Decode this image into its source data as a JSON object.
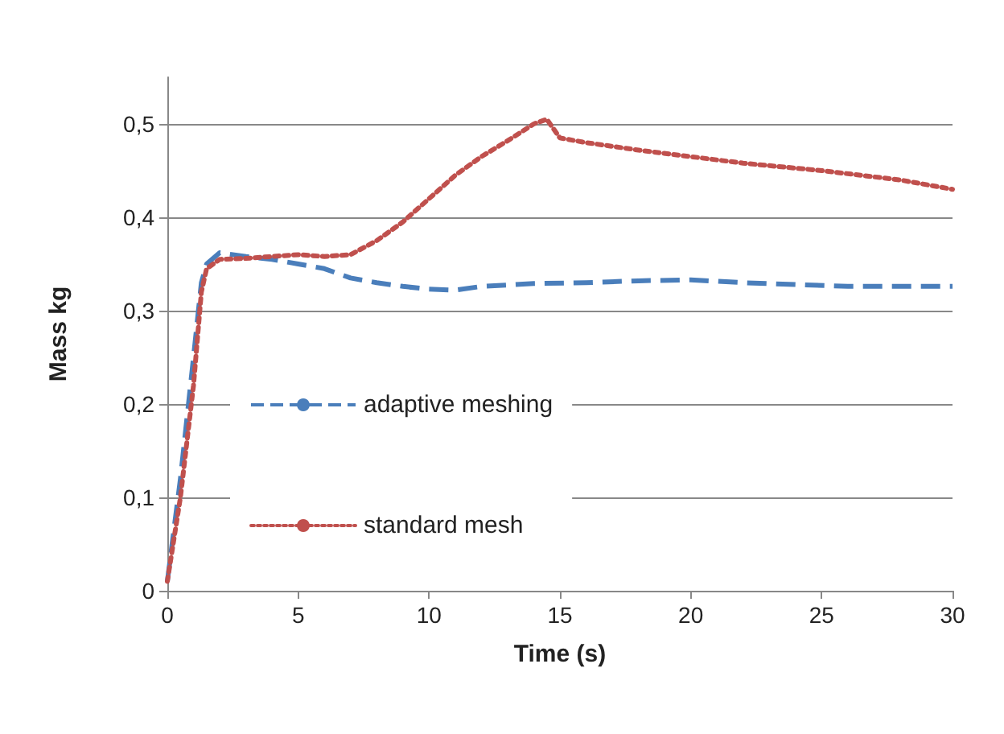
{
  "chart_data": {
    "type": "line",
    "xlabel": "Time (s)",
    "ylabel": "Mass kg",
    "xlim": [
      0,
      30
    ],
    "xticks": [
      0,
      5,
      10,
      15,
      20,
      25,
      30
    ],
    "ylim": [
      0,
      0.55
    ],
    "yticks": [
      {
        "value": 0,
        "label": "0"
      },
      {
        "value": 0.1,
        "label": "0,1"
      },
      {
        "value": 0.2,
        "label": "0,2"
      },
      {
        "value": 0.3,
        "label": "0,3"
      },
      {
        "value": 0.4,
        "label": "0,4"
      },
      {
        "value": 0.5,
        "label": "0,5"
      }
    ],
    "grid": "y",
    "legend": "left",
    "marker": "none",
    "series": [
      {
        "name": "adaptive meshing",
        "color": "#4a7ebb",
        "line_style": "dashed",
        "x": [
          0,
          0.5,
          1,
          1.3,
          1.5,
          2,
          3,
          4,
          5,
          6,
          7,
          8,
          9,
          10,
          11,
          12,
          14,
          16,
          18,
          20,
          22,
          24,
          26,
          30
        ],
        "values": [
          0.01,
          0.12,
          0.25,
          0.33,
          0.35,
          0.362,
          0.358,
          0.355,
          0.35,
          0.345,
          0.335,
          0.33,
          0.326,
          0.323,
          0.322,
          0.326,
          0.329,
          0.33,
          0.332,
          0.333,
          0.33,
          0.328,
          0.326,
          0.326
        ]
      },
      {
        "name": "standard mesh",
        "color": "#c0504d",
        "line_style": "dotted",
        "x": [
          0,
          0.5,
          1,
          1.3,
          1.5,
          2,
          3,
          4,
          5,
          6,
          7,
          8,
          9,
          10,
          11,
          12,
          13,
          14,
          14.5,
          15,
          16,
          18,
          20,
          22,
          25,
          28,
          30
        ],
        "values": [
          0.01,
          0.1,
          0.22,
          0.32,
          0.345,
          0.355,
          0.356,
          0.358,
          0.36,
          0.358,
          0.36,
          0.375,
          0.395,
          0.42,
          0.445,
          0.465,
          0.482,
          0.5,
          0.505,
          0.485,
          0.48,
          0.472,
          0.465,
          0.458,
          0.45,
          0.44,
          0.43
        ]
      }
    ]
  }
}
